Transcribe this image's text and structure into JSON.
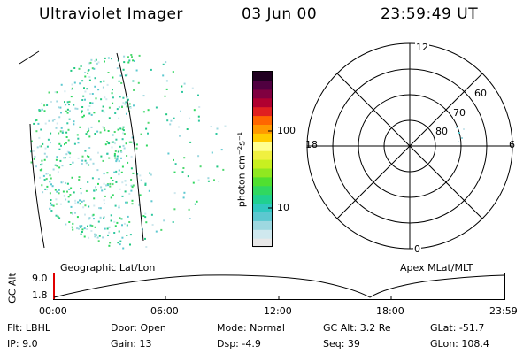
{
  "header": {
    "instrument": "Ultraviolet Imager",
    "date": "03 Jun 00",
    "time": "23:59:49 UT"
  },
  "geo_panel": {
    "title": "Geographic Lat/Lon"
  },
  "color_bar": {
    "unit_label": "photon cm⁻²s⁻¹",
    "scale": "log",
    "tick_labels": [
      "100",
      "10"
    ],
    "colors": [
      "#e8e8e8",
      "#cfe8ee",
      "#9ed8e0",
      "#5cc8d0",
      "#30c8c0",
      "#20d090",
      "#30d860",
      "#50e030",
      "#90e820",
      "#c8f020",
      "#f0f040",
      "#ffff90",
      "#ffcc00",
      "#ff9900",
      "#ff6600",
      "#e02020",
      "#b00030",
      "#800040",
      "#500040",
      "#200020"
    ]
  },
  "polar_plot": {
    "title": "Apex MLat/MLT",
    "mlt_labels": {
      "top": "12",
      "left": "18",
      "right": "6",
      "bottom": "0"
    },
    "lat_labels": [
      "60",
      "70",
      "80"
    ]
  },
  "gc_alt_strip": {
    "axis_label": "GC Alt",
    "y_ticks": [
      "9.0",
      "1.8"
    ],
    "x_ticks": [
      "00:00",
      "06:00",
      "12:00",
      "18:00",
      "23:59"
    ]
  },
  "status": {
    "col1": [
      "Flt:  LBHL",
      "IP:  9.0"
    ],
    "col2": [
      "Door:  Open",
      "Gain:  13"
    ],
    "col3": [
      "Mode:  Normal",
      "Dsp:     -4.9"
    ],
    "col4": [
      "GC Alt:  3.2 Re",
      "Seq:  39"
    ],
    "col5": [
      "GLat:  -51.7",
      "GLon:  108.4"
    ]
  }
}
